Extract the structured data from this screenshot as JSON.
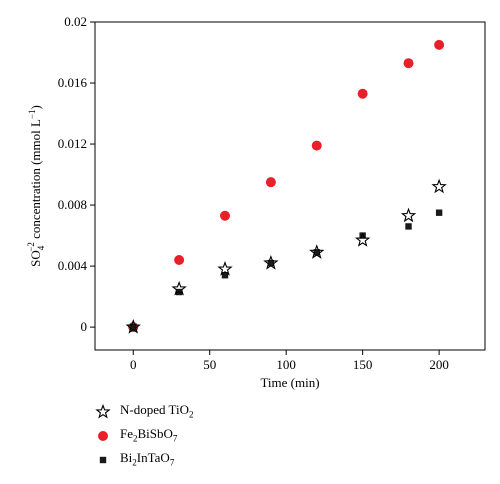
{
  "chart_data": {
    "type": "scatter",
    "title": "",
    "xlabel": "Time (min)",
    "ylabel": "SO4-2 concentration (mmol L-1)",
    "ylabel_parts": {
      "pre": "SO",
      "sub": "4",
      "sup": "−2",
      "post": " concentration (mmol L",
      "unit_sup": "−1",
      "end": ")"
    },
    "xlim": [
      -25,
      230
    ],
    "ylim": [
      -0.0015,
      0.02
    ],
    "xticks": [
      0,
      50,
      100,
      150,
      200
    ],
    "yticks": [
      0,
      0.004,
      0.008,
      0.012,
      0.016,
      0.02
    ],
    "ytick_labels": [
      "0",
      "0.004",
      "0.008",
      "0.012",
      "0.016",
      "0.02"
    ],
    "grid": false,
    "legend_position": "bottom-left, below plot",
    "series": [
      {
        "name": "N-doped TiO2",
        "name_parts": [
          "N-doped TiO",
          "2",
          ""
        ],
        "marker": "open-star",
        "color": "#000000",
        "x": [
          0,
          30,
          60,
          90,
          120,
          150,
          180,
          200
        ],
        "y": [
          0,
          0.0025,
          0.0038,
          0.0042,
          0.0049,
          0.0057,
          0.0073,
          0.0092
        ]
      },
      {
        "name": "Fe2BiSbO7",
        "name_parts": [
          "Fe",
          "2",
          "BiSbO",
          "7",
          ""
        ],
        "marker": "circle",
        "color": "#e8202a",
        "x": [
          0,
          30,
          60,
          90,
          120,
          150,
          180,
          200
        ],
        "y": [
          0,
          0.0044,
          0.0073,
          0.0095,
          0.0119,
          0.0153,
          0.0173,
          0.0185
        ]
      },
      {
        "name": "Bi2InTaO7",
        "name_parts": [
          "Bi",
          "2",
          "InTaO",
          "7",
          ""
        ],
        "marker": "square",
        "color": "#1a1a1a",
        "x": [
          0,
          30,
          60,
          90,
          120,
          150,
          180,
          200
        ],
        "y": [
          0,
          0.0023,
          0.0034,
          0.0042,
          0.0049,
          0.006,
          0.0066,
          0.0075
        ]
      }
    ]
  }
}
